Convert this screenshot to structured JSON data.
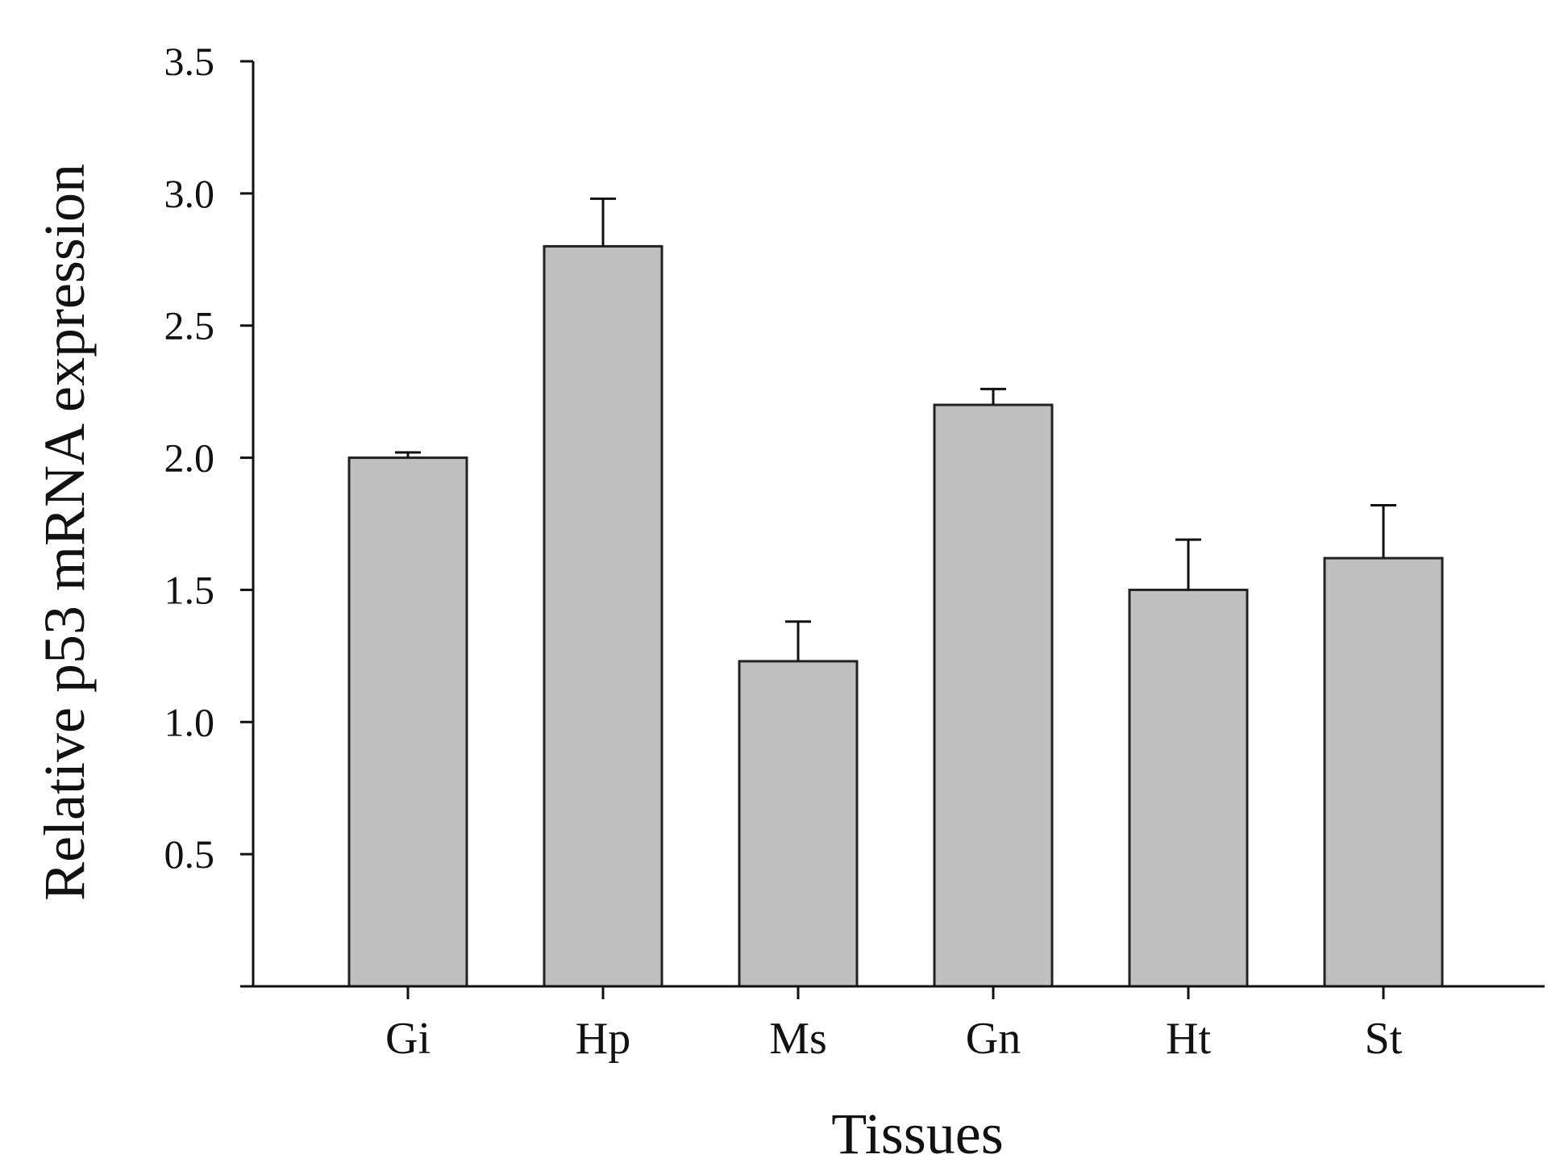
{
  "chart_data": {
    "type": "bar",
    "title": "",
    "xlabel": "Tissues",
    "ylabel": "Relative p53 mRNA expression",
    "categories": [
      "Gi",
      "Hp",
      "Ms",
      "Gn",
      "Ht",
      "St"
    ],
    "values": [
      2.0,
      2.8,
      1.23,
      2.2,
      1.5,
      1.62
    ],
    "errors": [
      0.02,
      0.18,
      0.15,
      0.06,
      0.19,
      0.2
    ],
    "ylim": [
      0,
      3.5
    ],
    "yticks": [
      "0.5",
      "1.0",
      "1.5",
      "2.0",
      "2.5",
      "3.0",
      "3.5"
    ],
    "grid": false,
    "bar_color": "#c0c0c0",
    "edge_color": "#222222"
  }
}
